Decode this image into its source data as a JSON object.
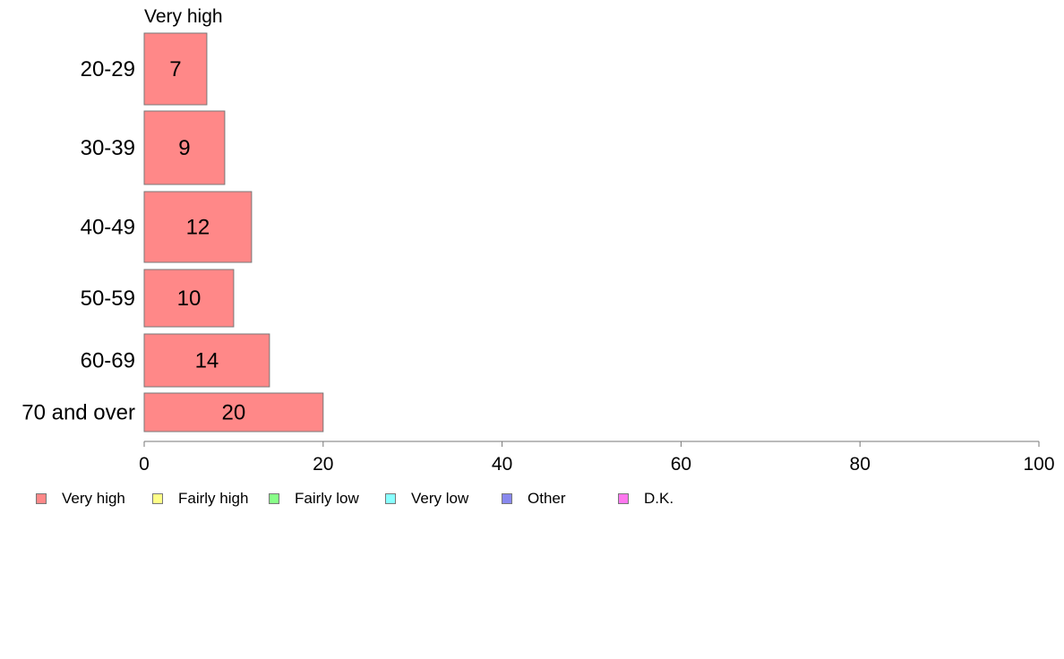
{
  "chart_data": {
    "type": "bar",
    "orientation": "horizontal",
    "title": "Very high",
    "xlabel": "",
    "ylabel": "",
    "categories": [
      "20-29",
      "30-39",
      "40-49",
      "50-59",
      "60-69",
      "70 and over"
    ],
    "series": [
      {
        "name": "Very high",
        "values": [
          7,
          9,
          12,
          10,
          14,
          20
        ],
        "color": "#ff8888"
      }
    ],
    "xlim": [
      0,
      100
    ],
    "xticks": [
      0,
      20,
      40,
      60,
      80,
      100
    ],
    "grid": false,
    "legend_position": "bottom",
    "legend": [
      {
        "label": "Very high",
        "color": "#ff8888"
      },
      {
        "label": "Fairly high",
        "color": "#ffff88"
      },
      {
        "label": "Fairly low",
        "color": "#88ff88"
      },
      {
        "label": "Very low",
        "color": "#88ffff"
      },
      {
        "label": "Other",
        "color": "#8888ee"
      },
      {
        "label": "D.K.",
        "color": "#ff77ee"
      }
    ]
  }
}
